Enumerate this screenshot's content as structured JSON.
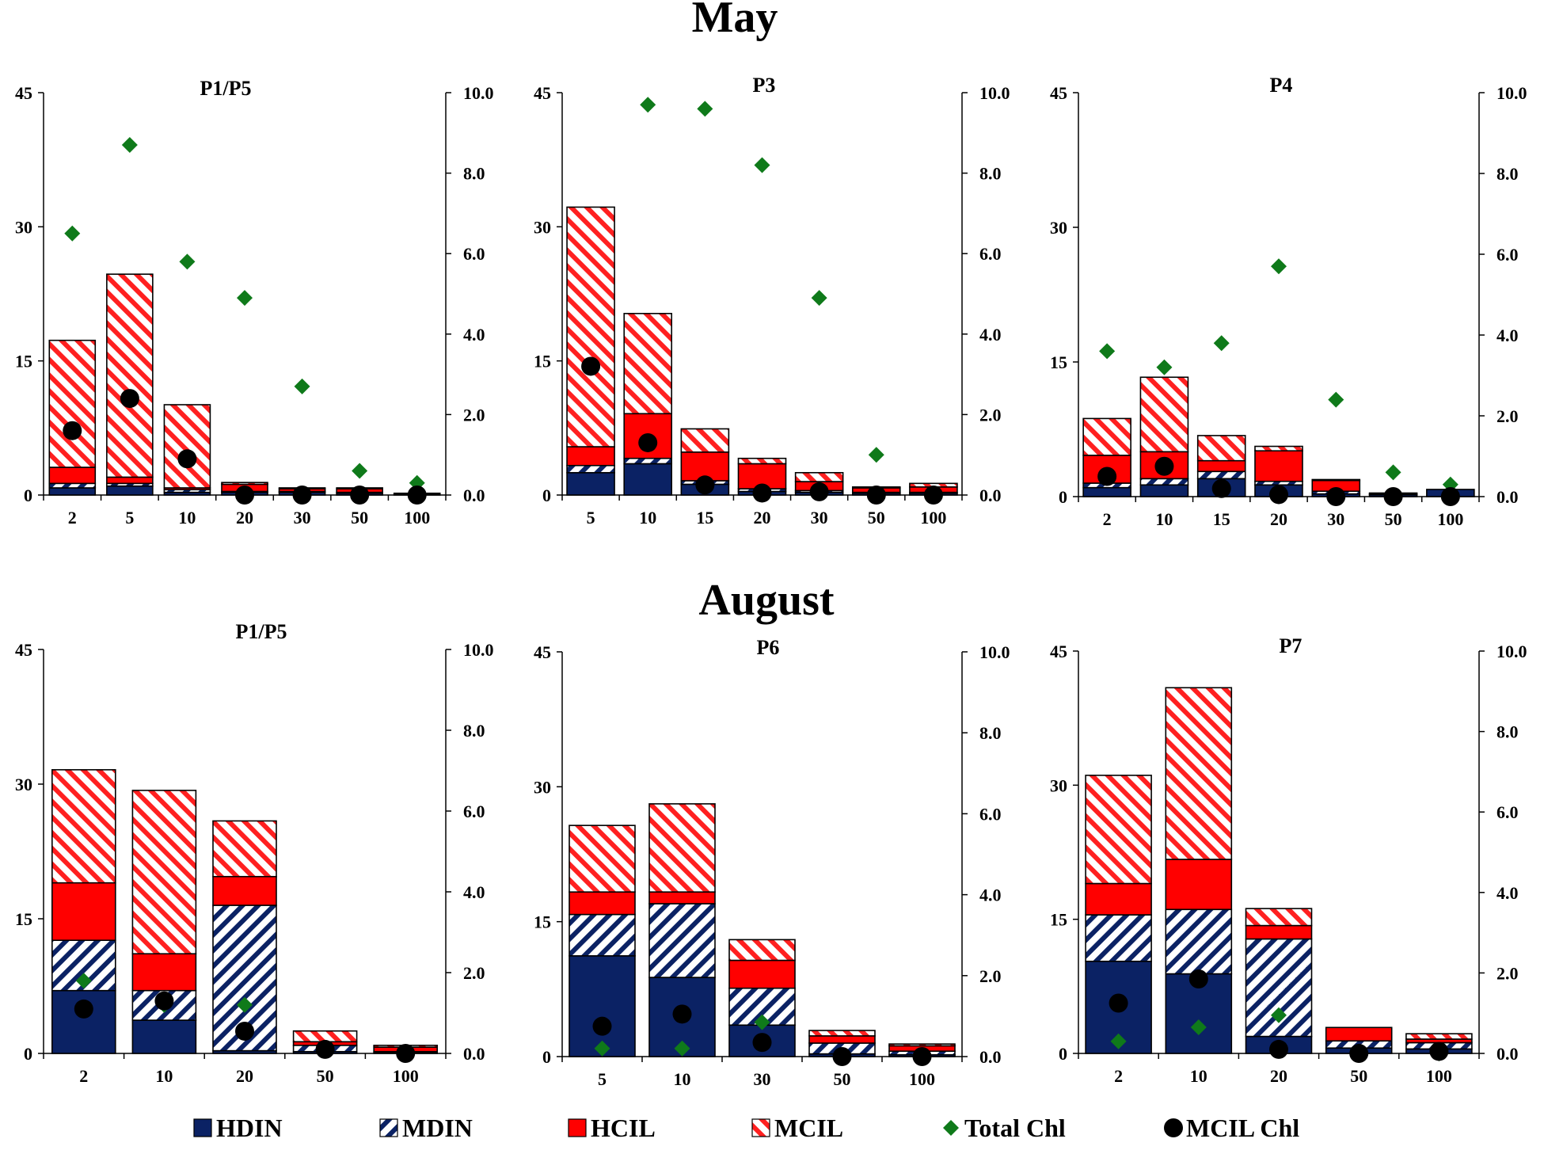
{
  "colors": {
    "HDIN": "#0b2264",
    "MDIN_stripe": "#0b2264",
    "HCIL": "#ff0000",
    "MCIL_stripe": "#ff2020",
    "total_chl": "#0f7a1a",
    "mcil_chl": "#000000"
  },
  "legend": [
    {
      "key": "HDIN",
      "label": "HDIN"
    },
    {
      "key": "MDIN",
      "label": "MDIN"
    },
    {
      "key": "HCIL",
      "label": "HCIL"
    },
    {
      "key": "MCIL",
      "label": "MCIL"
    },
    {
      "key": "total_chl",
      "label": "Total Chl"
    },
    {
      "key": "mcil_chl",
      "label": "MCIL Chl"
    }
  ],
  "chart_data": [
    {
      "type": "bar",
      "group": "May",
      "title": "P1/P5",
      "left_axis": {
        "ylim": [
          0,
          45
        ],
        "ticks": [
          "0",
          "15",
          "30",
          "45"
        ]
      },
      "right_axis": {
        "ylim": [
          0,
          10
        ],
        "ticks": [
          "0.0",
          "2.0",
          "4.0",
          "6.0",
          "8.0",
          "10.0"
        ]
      },
      "categories": [
        "2",
        "5",
        "10",
        "20",
        "30",
        "50",
        "100"
      ],
      "series": [
        {
          "name": "HDIN",
          "values": [
            0.8,
            1.0,
            0.3,
            0.3,
            0.3,
            0.2,
            0.1
          ]
        },
        {
          "name": "MDIN",
          "values": [
            0.5,
            0.3,
            0.3,
            0.1,
            0.1,
            0.1,
            0.0
          ]
        },
        {
          "name": "HCIL",
          "values": [
            1.8,
            0.7,
            0.2,
            0.8,
            0.3,
            0.4,
            0.1
          ]
        },
        {
          "name": "MCIL",
          "values": [
            14.2,
            22.7,
            9.3,
            0.2,
            0.1,
            0.1,
            0.0
          ]
        }
      ],
      "total_chl": [
        6.5,
        8.7,
        5.8,
        4.9,
        2.7,
        0.6,
        0.3
      ],
      "mcil_chl": [
        1.6,
        2.4,
        0.9,
        0.0,
        0.0,
        0.0,
        0.0
      ]
    },
    {
      "type": "bar",
      "group": "May",
      "title": "P3",
      "left_axis": {
        "ylim": [
          0,
          45
        ],
        "ticks": [
          "0",
          "15",
          "30",
          "45"
        ]
      },
      "right_axis": {
        "ylim": [
          0,
          10
        ],
        "ticks": [
          "0.0",
          "2.0",
          "4.0",
          "6.0",
          "8.0",
          "10.0"
        ]
      },
      "categories": [
        "5",
        "10",
        "15",
        "20",
        "30",
        "50",
        "100"
      ],
      "series": [
        {
          "name": "HDIN",
          "values": [
            2.5,
            3.5,
            1.2,
            0.4,
            0.3,
            0.2,
            0.2
          ]
        },
        {
          "name": "MDIN",
          "values": [
            0.8,
            0.6,
            0.4,
            0.3,
            0.2,
            0.1,
            0.1
          ]
        },
        {
          "name": "HCIL",
          "values": [
            2.1,
            5.0,
            3.2,
            2.8,
            1.0,
            0.5,
            0.6
          ]
        },
        {
          "name": "MCIL",
          "values": [
            26.8,
            11.2,
            2.6,
            0.6,
            1.0,
            0.1,
            0.4
          ]
        }
      ],
      "total_chl": [
        9.7,
        9.6,
        8.2,
        4.9,
        1.0
      ],
      "total_chl_categories": [
        "10",
        "15",
        "20",
        "30",
        "50"
      ],
      "mcil_chl": [
        3.2,
        1.3,
        0.25,
        0.05,
        0.08,
        0.0,
        0.0
      ]
    },
    {
      "type": "bar",
      "group": "May",
      "title": "P4",
      "left_axis": {
        "ylim": [
          0,
          45
        ],
        "ticks": [
          "0",
          "15",
          "30",
          "45"
        ]
      },
      "right_axis": {
        "ylim": [
          0,
          10
        ],
        "ticks": [
          "0.0",
          "2.0",
          "4.0",
          "6.0",
          "8.0",
          "10.0"
        ]
      },
      "categories": [
        "2",
        "10",
        "15",
        "20",
        "30",
        "50",
        "100"
      ],
      "series": [
        {
          "name": "HDIN",
          "values": [
            1.0,
            1.3,
            2.0,
            1.3,
            0.3,
            0.2,
            0.8
          ]
        },
        {
          "name": "MDIN",
          "values": [
            0.5,
            0.7,
            0.8,
            0.4,
            0.3,
            0.1,
            0.0
          ]
        },
        {
          "name": "HCIL",
          "values": [
            3.1,
            3.0,
            1.2,
            3.4,
            1.2,
            0.1,
            0.0
          ]
        },
        {
          "name": "MCIL",
          "values": [
            4.1,
            8.3,
            2.8,
            0.5,
            0.1,
            0.0,
            0.0
          ]
        }
      ],
      "total_chl": [
        3.6,
        3.2,
        3.8,
        5.7,
        2.4,
        0.6,
        0.3
      ],
      "mcil_chl": [
        0.5,
        0.75,
        0.2,
        0.05,
        0.0,
        0.0,
        0.0
      ]
    },
    {
      "type": "bar",
      "group": "August",
      "title": "P1/P5",
      "left_axis": {
        "ylim": [
          0,
          45
        ],
        "ticks": [
          "0",
          "15",
          "30",
          "45"
        ]
      },
      "right_axis": {
        "ylim": [
          0,
          10
        ],
        "ticks": [
          "0.0",
          "2.0",
          "4.0",
          "6.0",
          "8.0",
          "10.0"
        ]
      },
      "categories": [
        "2",
        "10",
        "20",
        "50",
        "100"
      ],
      "series": [
        {
          "name": "HDIN",
          "values": [
            7.0,
            3.7,
            0.3,
            0.2,
            0.1
          ]
        },
        {
          "name": "MDIN",
          "values": [
            5.6,
            3.3,
            16.2,
            0.7,
            0.1
          ]
        },
        {
          "name": "HCIL",
          "values": [
            6.4,
            4.1,
            3.2,
            0.4,
            0.5
          ]
        },
        {
          "name": "MCIL",
          "values": [
            12.6,
            18.2,
            6.2,
            1.2,
            0.2
          ]
        }
      ],
      "total_chl": [
        1.8,
        1.2,
        1.2,
        0.1,
        0.0
      ],
      "mcil_chl": [
        1.1,
        1.3,
        0.55,
        0.1,
        0.0
      ]
    },
    {
      "type": "bar",
      "group": "August",
      "title": "P6",
      "left_axis": {
        "ylim": [
          0,
          45
        ],
        "ticks": [
          "0",
          "15",
          "30",
          "45"
        ]
      },
      "right_axis": {
        "ylim": [
          0,
          10
        ],
        "ticks": [
          "0.0",
          "2.0",
          "4.0",
          "6.0",
          "8.0",
          "10.0"
        ]
      },
      "categories": [
        "5",
        "10",
        "30",
        "50",
        "100"
      ],
      "series": [
        {
          "name": "HDIN",
          "values": [
            11.2,
            8.8,
            3.5,
            0.3,
            0.2
          ]
        },
        {
          "name": "MDIN",
          "values": [
            4.6,
            8.2,
            4.1,
            1.2,
            0.4
          ]
        },
        {
          "name": "HCIL",
          "values": [
            2.5,
            1.3,
            3.1,
            0.8,
            0.6
          ]
        },
        {
          "name": "MCIL",
          "values": [
            7.4,
            9.8,
            2.3,
            0.6,
            0.2
          ]
        }
      ],
      "total_chl": [
        0.2,
        0.2,
        0.85,
        0.0,
        0.0
      ],
      "mcil_chl": [
        0.75,
        1.05,
        0.35,
        0.0,
        0.0
      ]
    },
    {
      "type": "bar",
      "group": "August",
      "title": "P7",
      "left_axis": {
        "ylim": [
          0,
          45
        ],
        "ticks": [
          "0",
          "15",
          "30",
          "45"
        ]
      },
      "right_axis": {
        "ylim": [
          0,
          10
        ],
        "ticks": [
          "0.0",
          "2.0",
          "4.0",
          "6.0",
          "8.0",
          "10.0"
        ]
      },
      "categories": [
        "2",
        "10",
        "20",
        "50",
        "100"
      ],
      "series": [
        {
          "name": "HDIN",
          "values": [
            10.3,
            8.9,
            1.9,
            0.6,
            0.5
          ]
        },
        {
          "name": "MDIN",
          "values": [
            5.2,
            7.2,
            10.9,
            0.8,
            0.7
          ]
        },
        {
          "name": "HCIL",
          "values": [
            3.5,
            5.6,
            1.5,
            1.5,
            0.4
          ]
        },
        {
          "name": "MCIL",
          "values": [
            12.1,
            19.2,
            1.9,
            0.0,
            0.6
          ]
        }
      ],
      "total_chl": [
        0.3,
        0.65,
        0.95,
        0.0,
        0.0
      ],
      "mcil_chl": [
        1.25,
        1.85,
        0.1,
        0.0,
        0.05
      ]
    }
  ],
  "month_titles": {
    "may": "May",
    "august": "August"
  }
}
